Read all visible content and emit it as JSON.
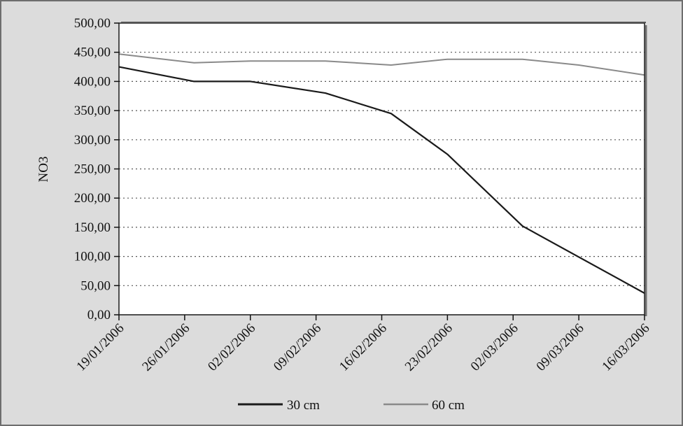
{
  "chart_data": {
    "type": "line",
    "ylabel": "NO3",
    "xlabel": "",
    "ylim": [
      0,
      500
    ],
    "y_ticks": [
      "0,00",
      "50,00",
      "100,00",
      "150,00",
      "200,00",
      "250,00",
      "300,00",
      "350,00",
      "400,00",
      "450,00",
      "500,00"
    ],
    "x_range": [
      "19/01/2006",
      "16/03/2006"
    ],
    "x_ticks": [
      "19/01/2006",
      "26/01/2006",
      "02/02/2006",
      "09/02/2006",
      "16/02/2006",
      "23/02/2006",
      "02/03/2006",
      "09/03/2006",
      "16/03/2006"
    ],
    "grid": "horizontal dotted",
    "legend_position": "bottom",
    "series": [
      {
        "name": "30 cm",
        "color": "#1a1a1a",
        "points": [
          {
            "x": "19/01/2006",
            "y": 425
          },
          {
            "x": "27/01/2006",
            "y": 400
          },
          {
            "x": "02/02/2006",
            "y": 400
          },
          {
            "x": "10/02/2006",
            "y": 380
          },
          {
            "x": "17/02/2006",
            "y": 345
          },
          {
            "x": "23/02/2006",
            "y": 275
          },
          {
            "x": "03/03/2006",
            "y": 152
          },
          {
            "x": "16/03/2006",
            "y": 37
          }
        ]
      },
      {
        "name": "60 cm",
        "color": "#8a8a8a",
        "points": [
          {
            "x": "19/01/2006",
            "y": 447
          },
          {
            "x": "27/01/2006",
            "y": 432
          },
          {
            "x": "02/02/2006",
            "y": 435
          },
          {
            "x": "10/02/2006",
            "y": 435
          },
          {
            "x": "17/02/2006",
            "y": 428
          },
          {
            "x": "23/02/2006",
            "y": 438
          },
          {
            "x": "03/03/2006",
            "y": 438
          },
          {
            "x": "09/03/2006",
            "y": 428
          },
          {
            "x": "16/03/2006",
            "y": 411
          }
        ]
      }
    ]
  }
}
